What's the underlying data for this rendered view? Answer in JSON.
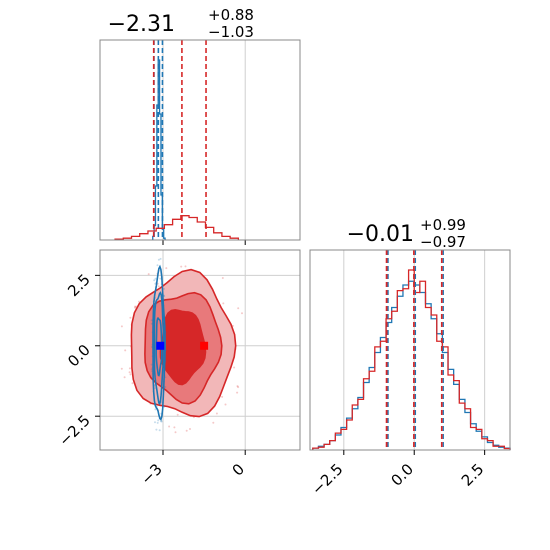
{
  "chart_data": [
    {
      "type": "histogram",
      "panel": "marginal-param1",
      "title": {
        "value": "−2.31",
        "plus": "+0.88",
        "minus": "−1.03"
      },
      "xlim": [
        -5.3,
        2.0
      ],
      "grid": true,
      "series": [
        {
          "name": "",
          "color": "#1f77b4",
          "bins_center": [
            -3.35,
            -3.3,
            -3.25,
            -3.2,
            -3.15,
            -3.1,
            -3.05,
            -3.0,
            -2.95
          ],
          "density": [
            0.02,
            0.08,
            0.3,
            0.75,
            1.0,
            0.7,
            0.25,
            0.06,
            0.01
          ],
          "quantiles": [
            -3.33,
            -3.17,
            -3.02
          ]
        },
        {
          "name": "",
          "color": "#d62728",
          "bins_center": [
            -4.6,
            -4.3,
            -4.0,
            -3.7,
            -3.4,
            -3.1,
            -2.8,
            -2.5,
            -2.2,
            -1.9,
            -1.6,
            -1.3,
            -1.0,
            -0.7,
            -0.4
          ],
          "density": [
            0.005,
            0.01,
            0.02,
            0.035,
            0.05,
            0.065,
            0.085,
            0.115,
            0.135,
            0.125,
            0.1,
            0.07,
            0.04,
            0.02,
            0.01
          ],
          "quantiles": [
            -3.34,
            -2.31,
            -1.43
          ]
        }
      ],
      "x_tick_labels": []
    },
    {
      "type": "contour",
      "panel": "joint-param1-param2",
      "xlim": [
        -5.3,
        2.0
      ],
      "ylim": [
        -3.7,
        3.4
      ],
      "grid": true,
      "x_ticks": [
        -3,
        0
      ],
      "y_ticks": [
        -2.5,
        0.0,
        2.5
      ],
      "x_tick_labels": [
        "−3",
        "0"
      ],
      "y_tick_labels": [
        "−2.5",
        "0.0",
        "2.5"
      ],
      "series": [
        {
          "name": "",
          "color": "#d62728",
          "center": [
            -2.3,
            0.0
          ],
          "levels_rx_ry": [
            [
              0.8,
              1.3
            ],
            [
              1.4,
              1.9
            ],
            [
              1.9,
              2.5
            ]
          ],
          "truth": [
            -1.5,
            0.0
          ]
        },
        {
          "name": "",
          "color": "#1f77b4",
          "center": [
            -3.15,
            0.0
          ],
          "levels_rx_ry": [
            [
              0.1,
              1.0
            ],
            [
              0.17,
              1.9
            ],
            [
              0.22,
              2.6
            ]
          ],
          "truth": [
            -3.1,
            0.0
          ]
        }
      ]
    },
    {
      "type": "histogram",
      "panel": "marginal-param2",
      "title": {
        "value": "−0.01",
        "plus": "+0.99",
        "minus": "−0.97"
      },
      "xlim": [
        -3.7,
        3.4
      ],
      "grid": true,
      "x_ticks": [
        -2.5,
        0.0,
        2.5
      ],
      "x_tick_labels": [
        "−2.5",
        "0.0",
        "2.5"
      ],
      "quantiles": [
        -0.98,
        -0.01,
        0.98
      ],
      "series": [
        {
          "name": "",
          "color": "#1f77b4",
          "bins_center": [
            -3.5,
            -3.3,
            -3.1,
            -2.9,
            -2.7,
            -2.5,
            -2.3,
            -2.1,
            -1.9,
            -1.7,
            -1.5,
            -1.3,
            -1.1,
            -0.9,
            -0.7,
            -0.5,
            -0.3,
            -0.1,
            0.1,
            0.3,
            0.5,
            0.7,
            0.9,
            1.1,
            1.3,
            1.5,
            1.7,
            1.9,
            2.1,
            2.3,
            2.5,
            2.7,
            2.9,
            3.1,
            3.3
          ],
          "density": [
            0.01,
            0.02,
            0.03,
            0.05,
            0.08,
            0.12,
            0.17,
            0.22,
            0.28,
            0.36,
            0.44,
            0.52,
            0.6,
            0.68,
            0.76,
            0.82,
            0.88,
            0.9,
            0.88,
            0.84,
            0.78,
            0.7,
            0.62,
            0.52,
            0.43,
            0.35,
            0.27,
            0.2,
            0.14,
            0.1,
            0.07,
            0.04,
            0.025,
            0.015,
            0.01
          ]
        },
        {
          "name": "",
          "color": "#d62728",
          "bins_center": [
            -3.5,
            -3.3,
            -3.1,
            -2.9,
            -2.7,
            -2.5,
            -2.3,
            -2.1,
            -1.9,
            -1.7,
            -1.5,
            -1.3,
            -1.1,
            -0.9,
            -0.7,
            -0.5,
            -0.3,
            -0.1,
            0.1,
            0.3,
            0.5,
            0.7,
            0.9,
            1.1,
            1.3,
            1.5,
            1.7,
            1.9,
            2.1,
            2.3,
            2.5,
            2.7,
            2.9,
            3.1,
            3.3
          ],
          "density": [
            0.01,
            0.015,
            0.03,
            0.05,
            0.09,
            0.11,
            0.16,
            0.24,
            0.27,
            0.38,
            0.42,
            0.55,
            0.58,
            0.7,
            0.74,
            0.85,
            0.86,
            0.96,
            0.84,
            0.9,
            0.76,
            0.72,
            0.58,
            0.55,
            0.4,
            0.37,
            0.25,
            0.22,
            0.12,
            0.11,
            0.06,
            0.05,
            0.02,
            0.02,
            0.008
          ]
        }
      ]
    }
  ]
}
